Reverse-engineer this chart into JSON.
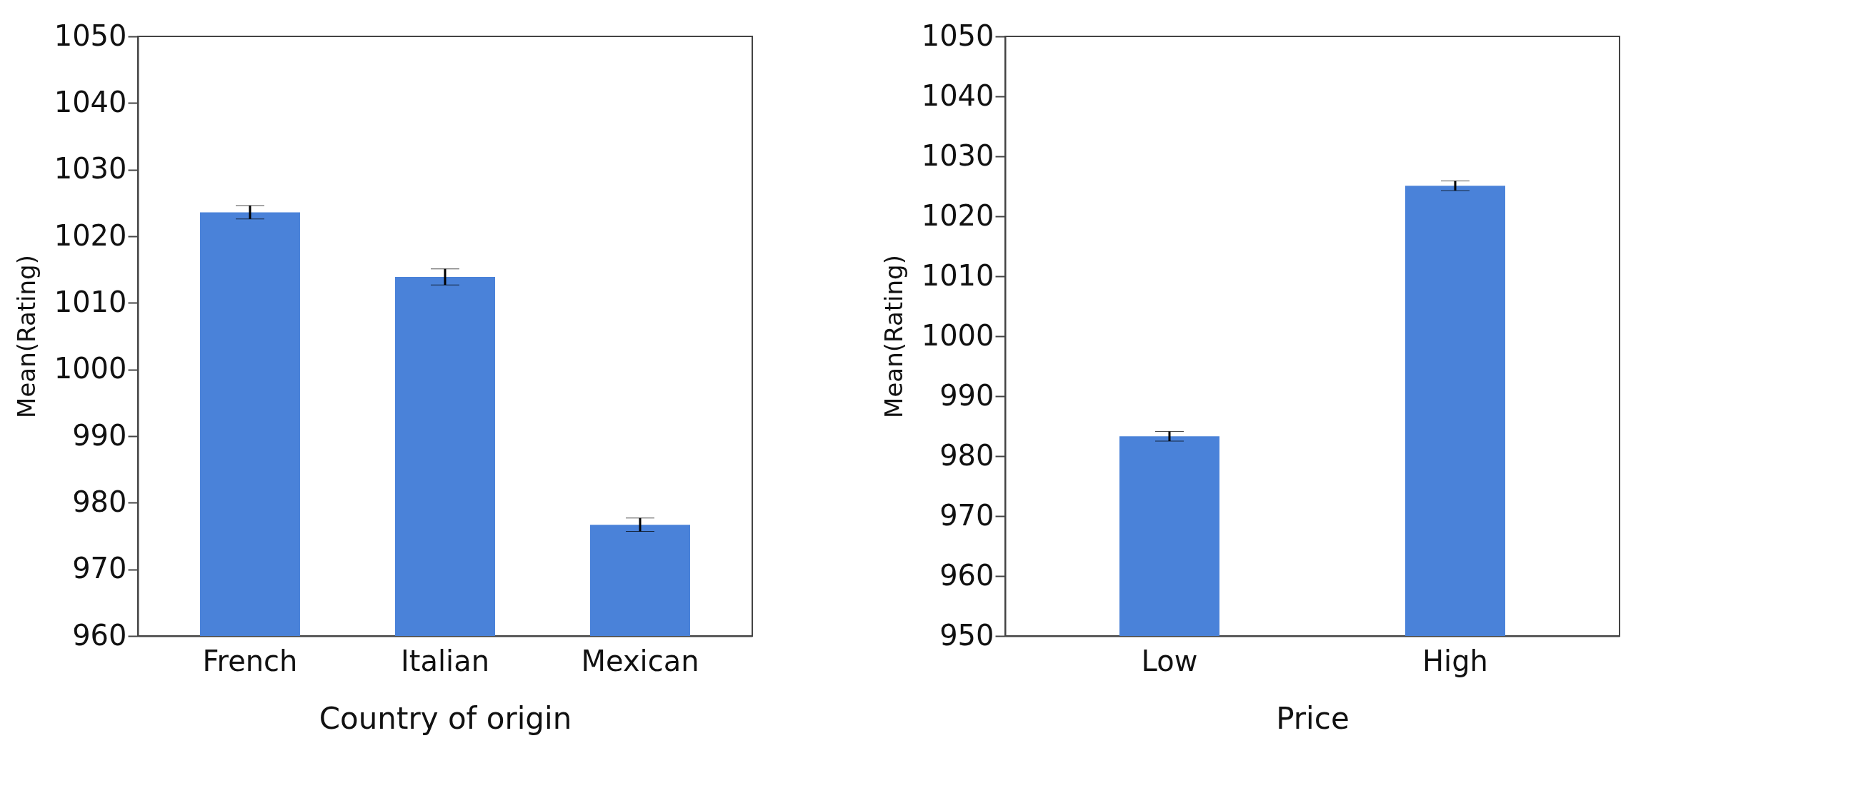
{
  "chart_data": [
    {
      "type": "bar",
      "xlabel": "Country of origin",
      "ylabel": "Mean(Rating)",
      "categories": [
        "French",
        "Italian",
        "Mexican"
      ],
      "values": [
        1023.6,
        1013.9,
        976.7
      ],
      "errors": [
        1,
        1.2,
        1
      ],
      "color": "#4a82d9",
      "ylim": [
        960,
        1050
      ],
      "yticks": [
        960,
        970,
        980,
        990,
        1000,
        1010,
        1020,
        1030,
        1040,
        1050
      ],
      "grid": false
    },
    {
      "type": "bar",
      "xlabel": "Price",
      "ylabel": "Mean(Rating)",
      "categories": [
        "Low",
        "High"
      ],
      "values": [
        983.3,
        1025.1
      ],
      "errors": [
        0.8,
        0.8
      ],
      "color": "#4a82d9",
      "ylim": [
        950,
        1050
      ],
      "yticks": [
        950,
        960,
        970,
        980,
        990,
        1000,
        1010,
        1020,
        1030,
        1040,
        1050
      ],
      "grid": false
    }
  ]
}
